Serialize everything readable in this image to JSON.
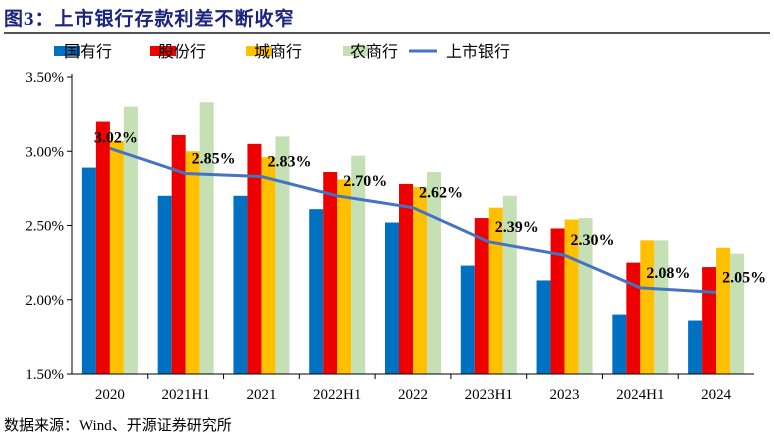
{
  "title": "图3：上市银行存款利差不断收窄",
  "source": "数据来源：Wind、开源证券研究所",
  "chart_data": {
    "type": "bar",
    "title": "图3：上市银行存款利差不断收窄",
    "categories": [
      "2020",
      "2021H1",
      "2021",
      "2022H1",
      "2022",
      "2023H1",
      "2023",
      "2024H1",
      "2024"
    ],
    "ylim": [
      1.5,
      3.5
    ],
    "yticks": [
      "1.50%",
      "2.00%",
      "2.50%",
      "3.00%",
      "3.50%"
    ],
    "ytick_values": [
      1.5,
      2.0,
      2.5,
      3.0,
      3.5
    ],
    "grid": false,
    "legend": "top",
    "series": [
      {
        "name": "国有行",
        "type": "bar",
        "color": "#0070c0",
        "values": [
          2.89,
          2.7,
          2.7,
          2.61,
          2.52,
          2.23,
          2.13,
          1.9,
          1.86
        ]
      },
      {
        "name": "股份行",
        "type": "bar",
        "color": "#ee0000",
        "values": [
          3.2,
          3.11,
          3.05,
          2.86,
          2.78,
          2.55,
          2.48,
          2.25,
          2.22
        ]
      },
      {
        "name": "城商行",
        "type": "bar",
        "color": "#ffc000",
        "values": [
          3.07,
          3.0,
          2.96,
          2.81,
          2.76,
          2.62,
          2.54,
          2.4,
          2.35
        ]
      },
      {
        "name": "农商行",
        "type": "bar",
        "color": "#c5e0b4",
        "values": [
          3.3,
          3.33,
          3.1,
          2.97,
          2.86,
          2.7,
          2.55,
          2.4,
          2.31
        ]
      },
      {
        "name": "上市银行",
        "type": "line",
        "color": "#4472c4",
        "values": [
          3.02,
          2.85,
          2.83,
          2.7,
          2.62,
          2.39,
          2.3,
          2.08,
          2.05
        ],
        "labels": [
          "3.02%",
          "2.85%",
          "2.83%",
          "2.70%",
          "2.62%",
          "2.39%",
          "2.30%",
          "2.08%",
          "2.05%"
        ]
      }
    ]
  }
}
